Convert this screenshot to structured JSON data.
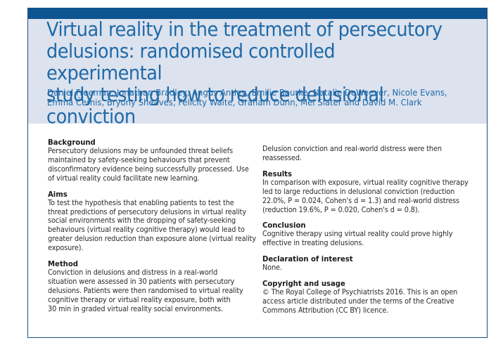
{
  "article": {
    "title": "Virtual reality in the treatment of persecutory\ndelusions: randomised controlled experimental\nstudy testing how to reduce delusional conviction",
    "authors": "Daniel Freeman, Jonathan Bradley, Angus Antley, Emilie Bourke, Natalie DeWeever, Nicole Evans,\nEmma Černis, Bryony Sheaves, Felicity Waite, Graham Dunn, Mel Slater and David M. Clark"
  },
  "abstract": {
    "left": [
      {
        "heading": "Background",
        "text": "Persecutory delusions may be unfounded threat beliefs\nmaintained by safety-seeking behaviours that prevent\ndisconfirmatory evidence being successfully processed. Use\nof virtual reality could facilitate new learning."
      },
      {
        "heading": "Aims",
        "text": "To test the hypothesis that enabling patients to test the\nthreat predictions of persecutory delusions in virtual reality\nsocial environments with the dropping of safety-seeking\nbehaviours (virtual reality cognitive therapy) would lead to\ngreater delusion reduction than exposure alone (virtual reality\nexposure)."
      },
      {
        "heading": "Method",
        "text": "Conviction in delusions and distress in a real-world\nsituation were assessed in 30 patients with persecutory\ndelusions. Patients were then randomised to virtual reality\ncognitive therapy or virtual reality exposure, both with\n30 min in graded virtual reality social environments."
      }
    ],
    "right_continuation": "Delusion conviction and real-world distress were then\nreassessed.",
    "right": [
      {
        "heading": "Results",
        "text": "In comparison with exposure, virtual reality cognitive therapy\nled to large reductions in delusional conviction (reduction\n22.0%, P = 0.024, Cohen's d = 1.3) and real-world distress\n(reduction 19.6%, P = 0.020, Cohen's d = 0.8)."
      },
      {
        "heading": "Conclusion",
        "text": "Cognitive therapy using virtual reality could prove highly\neffective in treating delusions."
      },
      {
        "heading": "Declaration of interest",
        "text": "None."
      },
      {
        "heading": "Copyright and usage",
        "text": "© The Royal College of Psychiatrists 2016. This is an open\naccess article distributed under the terms of the Creative\nCommons Attribution (CC BY) licence."
      }
    ]
  },
  "colors": {
    "top_bar": "#0d5491",
    "header_bg": "#dce2ee",
    "title_text": "#1f6aa8",
    "border": "#1d4f7a"
  }
}
